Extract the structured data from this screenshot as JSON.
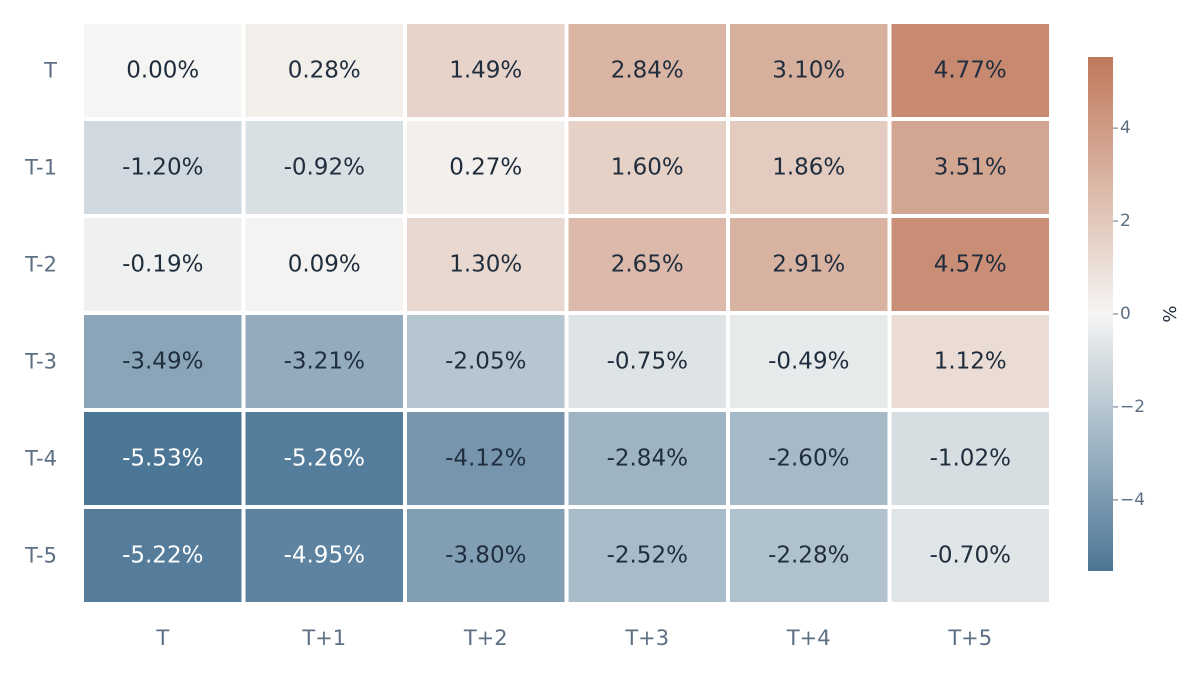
{
  "chart_data": {
    "type": "heatmap",
    "rows": [
      "T",
      "T-1",
      "T-2",
      "T-3",
      "T-4",
      "T-5"
    ],
    "columns": [
      "T",
      "T+1",
      "T+2",
      "T+3",
      "T+4",
      "T+5"
    ],
    "values": [
      [
        0.0,
        0.28,
        1.49,
        2.84,
        3.1,
        4.77
      ],
      [
        -1.2,
        -0.92,
        0.27,
        1.6,
        1.86,
        3.51
      ],
      [
        -0.19,
        0.09,
        1.3,
        2.65,
        2.91,
        4.57
      ],
      [
        -3.49,
        -3.21,
        -2.05,
        -0.75,
        -0.49,
        1.12
      ],
      [
        -5.53,
        -5.26,
        -4.12,
        -2.84,
        -2.6,
        -1.02
      ],
      [
        -5.22,
        -4.95,
        -3.8,
        -2.52,
        -2.28,
        -0.7
      ]
    ],
    "cell_labels": [
      [
        "0.00%",
        "0.28%",
        "1.49%",
        "2.84%",
        "3.10%",
        "4.77%"
      ],
      [
        "-1.20%",
        "-0.92%",
        "0.27%",
        "1.60%",
        "1.86%",
        "3.51%"
      ],
      [
        "-0.19%",
        "0.09%",
        "1.30%",
        "2.65%",
        "2.91%",
        "4.57%"
      ],
      [
        "-3.49%",
        "-3.21%",
        "-2.05%",
        "-0.75%",
        "-0.49%",
        "1.12%"
      ],
      [
        "-5.53%",
        "-5.26%",
        "-4.12%",
        "-2.84%",
        "-2.60%",
        "-1.02%"
      ],
      [
        "-5.22%",
        "-4.95%",
        "-3.80%",
        "-2.52%",
        "-2.28%",
        "-0.70%"
      ]
    ],
    "colorbar": {
      "label": "%",
      "range": [
        -5.53,
        5.53
      ],
      "ticks": [
        4,
        2,
        0,
        -2,
        -4
      ],
      "tick_labels": [
        "4",
        "2",
        "0",
        "−2",
        "−4"
      ],
      "colors": {
        "negative": "#4c7696",
        "neutral": "#f5f5f3",
        "positive": "#c0785a"
      }
    },
    "text_colors": {
      "dark": "#1f2d3d",
      "light": "#ffffff",
      "tick": "#5d6f82"
    }
  }
}
